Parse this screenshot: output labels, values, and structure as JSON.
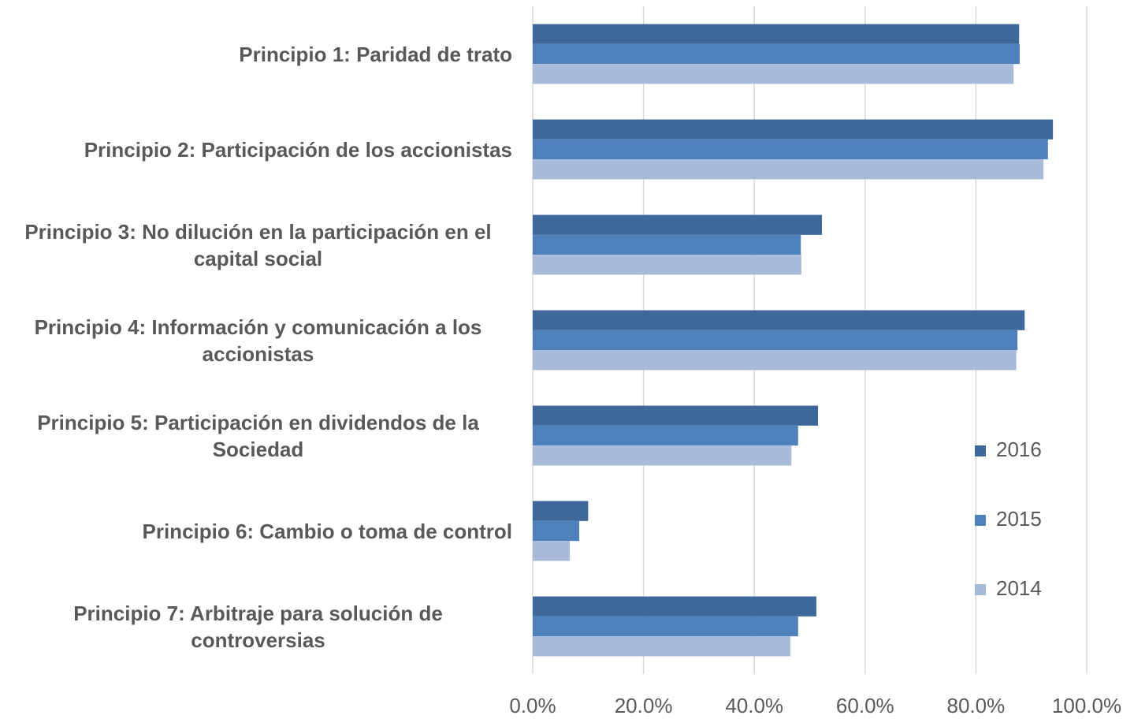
{
  "chart_data": {
    "type": "bar",
    "orientation": "horizontal",
    "categories": [
      "Principio 1: Paridad de trato",
      "Principio 2: Participación de los accionistas",
      "Principio 3: No dilución en la participación en el capital social",
      "Principio 4: Información y comunicación a los accionistas",
      "Principio 5: Participación en dividendos de la Sociedad",
      "Principio 6: Cambio o toma de control",
      "Principio 7: Arbitraje para solución de controversias"
    ],
    "series": [
      {
        "name": "2016",
        "color": "#3e6899",
        "values": [
          87.8,
          93.9,
          52.2,
          88.8,
          51.5,
          10.0,
          51.2
        ]
      },
      {
        "name": "2015",
        "color": "#4f81bd",
        "values": [
          87.9,
          93.0,
          48.4,
          87.5,
          47.9,
          8.4,
          47.9
        ]
      },
      {
        "name": "2014",
        "color": "#aabadb",
        "values": [
          86.8,
          92.2,
          48.5,
          87.3,
          46.7,
          6.7,
          46.5
        ]
      }
    ],
    "xlim": [
      0,
      100
    ],
    "xticks": [
      {
        "value": 0,
        "label": "0.0%"
      },
      {
        "value": 20,
        "label": "20.0%"
      },
      {
        "value": 40,
        "label": "40.0%"
      },
      {
        "value": 60,
        "label": "60.0%"
      },
      {
        "value": 80,
        "label": "80.0%"
      },
      {
        "value": 100,
        "label": "100.0%"
      }
    ],
    "grid": true,
    "legend": "right"
  }
}
